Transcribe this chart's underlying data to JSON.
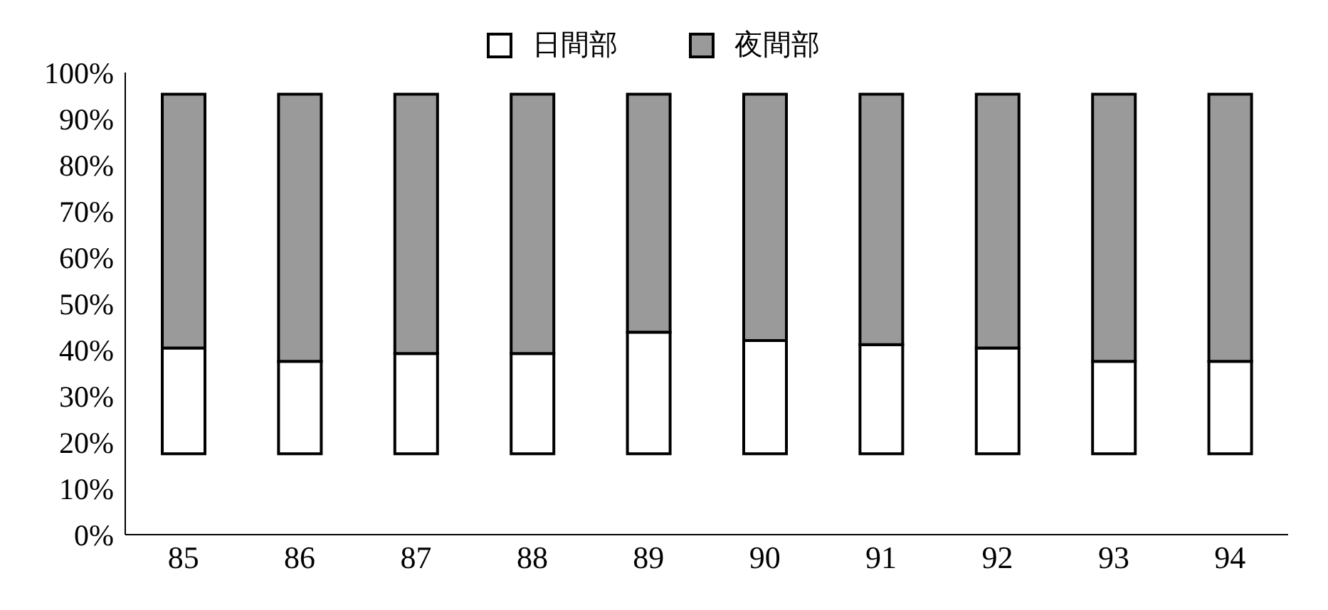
{
  "chart_data": {
    "type": "bar",
    "categories": [
      "85",
      "86",
      "87",
      "88",
      "89",
      "90",
      "91",
      "92",
      "93",
      "94"
    ],
    "series": [
      {
        "name": "日間部",
        "color": "#ffffff",
        "base": [
          17.5,
          17.5,
          17.5,
          17.5,
          17.5,
          17.5,
          17.5,
          17.5,
          17.5,
          17.5
        ],
        "values": [
          22.9,
          20,
          21.7,
          21.7,
          26.3,
          24.5,
          23.6,
          22.9,
          20,
          20
        ]
      },
      {
        "name": "夜間部",
        "color": "#9a9a9a",
        "base": [
          40.4,
          37.5,
          39.2,
          39.2,
          43.8,
          42,
          41.1,
          40.4,
          37.5,
          37.5
        ],
        "values": [
          54.9,
          57.8,
          56.1,
          56.1,
          51.5,
          53.3,
          54.2,
          54.9,
          57.8,
          57.8
        ]
      }
    ],
    "ylim": [
      0,
      100
    ],
    "yticks": [
      {
        "value": 0,
        "label": "0%"
      },
      {
        "value": 10,
        "label": "10%"
      },
      {
        "value": 20,
        "label": "20%"
      },
      {
        "value": 30,
        "label": "30%"
      },
      {
        "value": 40,
        "label": "40%"
      },
      {
        "value": 50,
        "label": "50%"
      },
      {
        "value": 60,
        "label": "60%"
      },
      {
        "value": 70,
        "label": "70%"
      },
      {
        "value": 80,
        "label": "80%"
      },
      {
        "value": 90,
        "label": "90%"
      },
      {
        "value": 100,
        "label": "100%"
      }
    ],
    "legend": "top"
  }
}
